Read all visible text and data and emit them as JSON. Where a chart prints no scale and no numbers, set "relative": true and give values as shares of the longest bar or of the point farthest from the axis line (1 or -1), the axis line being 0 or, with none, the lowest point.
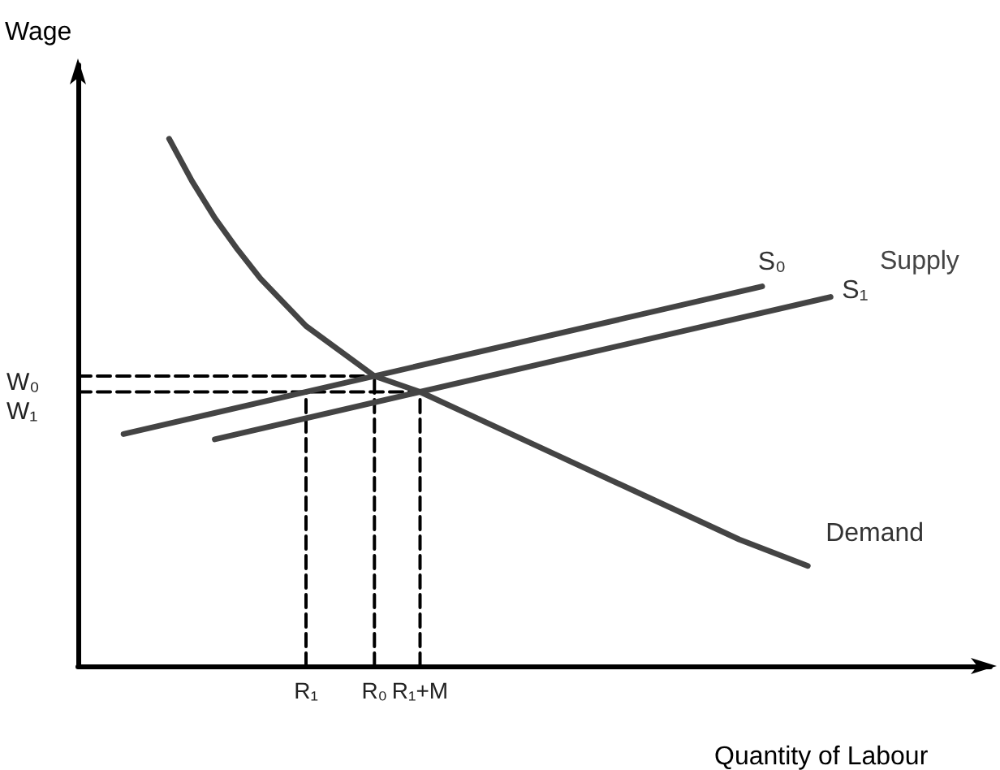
{
  "chart_data": {
    "type": "line",
    "xlabel": "Quantity of Labour",
    "ylabel": "Wage",
    "relative": true,
    "categories": [
      null,
      null,
      null,
      null,
      null,
      null,
      null,
      null,
      null,
      null,
      "R₁",
      null,
      null,
      "R₀",
      null,
      "R₁+M",
      null,
      null,
      null,
      null,
      null,
      null,
      null,
      null,
      null,
      null,
      null,
      null,
      null,
      null,
      null,
      null,
      null,
      null,
      null,
      null,
      null,
      null,
      null,
      null,
      null
    ],
    "grid": false,
    "legend": false,
    "marker": "none",
    "annotations": [
      "W₀",
      "W₁",
      "Supply"
    ],
    "series": [
      {
        "name": "Demand",
        "color": "#444444",
        "values": [
          null,
          null,
          null,
          null,
          1,
          0.92,
          0.85,
          0.79,
          0.735,
          null,
          0.645,
          null,
          null,
          0.55,
          null,
          0.52,
          null,
          null,
          null,
          null,
          0.42,
          null,
          null,
          null,
          null,
          0.32,
          null,
          null,
          null,
          0.24,
          null,
          null,
          0.19,
          null,
          null,
          null,
          null,
          null,
          null,
          null,
          null
        ]
      },
      {
        "name": "S₀",
        "color": "#444444",
        "values": [
          null,
          null,
          0.44,
          null,
          null,
          null,
          null,
          null,
          null,
          null,
          null,
          null,
          null,
          null,
          null,
          null,
          null,
          null,
          null,
          null,
          null,
          null,
          null,
          null,
          null,
          null,
          null,
          null,
          null,
          null,
          0.72,
          null,
          null,
          null,
          null,
          null,
          null,
          null,
          null,
          null,
          null
        ]
      },
      {
        "name": "S₁",
        "color": "#444444",
        "values": [
          null,
          null,
          null,
          null,
          null,
          null,
          0.43,
          null,
          null,
          null,
          null,
          null,
          null,
          null,
          null,
          null,
          null,
          null,
          null,
          null,
          null,
          null,
          null,
          null,
          null,
          null,
          null,
          null,
          null,
          null,
          null,
          null,
          null,
          0.7,
          null,
          null,
          null,
          null,
          null,
          null,
          null
        ]
      },
      {
        "color": "#000000",
        "line_style": "dashed",
        "values": [
          0.55,
          0.55,
          0.55,
          0.55,
          0.55,
          0.55,
          0.55,
          0.55,
          0.55,
          0.55,
          0.55,
          0.55,
          0.55,
          0.55,
          null,
          null,
          null,
          null,
          null,
          null,
          null,
          null,
          null,
          null,
          null,
          null,
          null,
          null,
          null,
          null,
          null,
          null,
          null,
          null,
          null,
          null,
          null,
          null,
          null,
          null,
          null
        ]
      },
      {
        "color": "#000000",
        "line_style": "dashed",
        "values": [
          0.52,
          0.52,
          0.52,
          0.52,
          0.52,
          0.52,
          0.52,
          0.52,
          0.52,
          0.52,
          0.52,
          0.52,
          0.52,
          0.52,
          0.52,
          0.52,
          null,
          null,
          null,
          null,
          null,
          null,
          null,
          null,
          null,
          null,
          null,
          null,
          null,
          null,
          null,
          null,
          null,
          null,
          null,
          null,
          null,
          null,
          null,
          null,
          null
        ]
      },
      {
        "color": "#000000",
        "line_style": "dashed",
        "x": [
          "R₁",
          "R₁"
        ],
        "values": [
          0,
          0.52
        ]
      },
      {
        "color": "#000000",
        "line_style": "dashed",
        "x": [
          "R₀",
          "R₀"
        ],
        "values": [
          0,
          0.55
        ]
      },
      {
        "color": "#000000",
        "line_style": "dashed",
        "x": [
          "R₁+M",
          "R₁+M"
        ],
        "values": [
          0,
          0.52
        ]
      }
    ]
  }
}
